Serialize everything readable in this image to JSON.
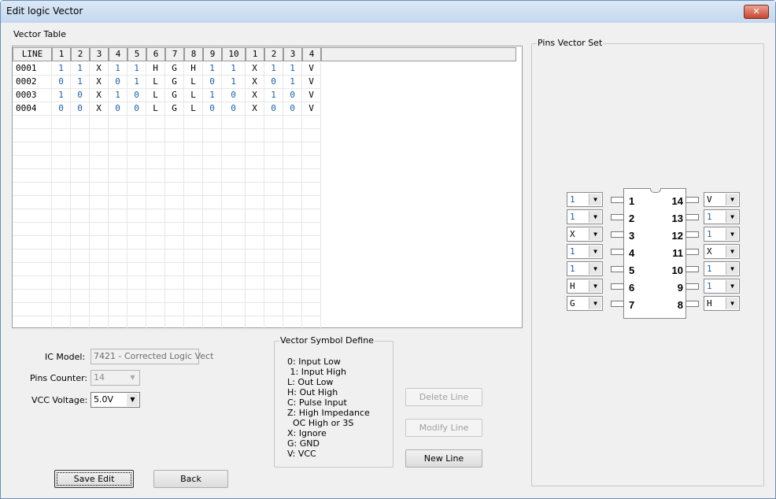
{
  "window": {
    "title": "Edit logic Vector",
    "close_icon": "close-x-icon"
  },
  "vector_table": {
    "label": "Vector Table",
    "headers": [
      "LINE",
      "1",
      "2",
      "3",
      "4",
      "5",
      "6",
      "7",
      "8",
      "9",
      "10",
      "1",
      "2",
      "3",
      "4"
    ],
    "rows": [
      [
        "0001",
        "1",
        "1",
        "X",
        "1",
        "1",
        "H",
        "G",
        "H",
        "1",
        "1",
        "X",
        "1",
        "1",
        "V"
      ],
      [
        "0002",
        "0",
        "1",
        "X",
        "0",
        "1",
        "L",
        "G",
        "L",
        "0",
        "1",
        "X",
        "0",
        "1",
        "V"
      ],
      [
        "0003",
        "1",
        "0",
        "X",
        "1",
        "0",
        "L",
        "G",
        "L",
        "1",
        "0",
        "X",
        "1",
        "0",
        "V"
      ],
      [
        "0004",
        "0",
        "0",
        "X",
        "0",
        "0",
        "L",
        "G",
        "L",
        "0",
        "0",
        "X",
        "0",
        "0",
        "V"
      ]
    ]
  },
  "form": {
    "ic_model_label": "IC Model:",
    "ic_model_value": "7421 - Corrected Logic Vect",
    "pins_counter_label": "Pins Counter:",
    "pins_counter_value": "14",
    "vcc_label": "VCC Voltage:",
    "vcc_value": "5.0V"
  },
  "symbols": {
    "title": "Vector Symbol Define",
    "items": [
      "0: Input Low",
      " 1: Input High",
      "L: Out Low",
      "H: Out High",
      "C: Pulse Input",
      "Z: High Impedance",
      "  OC High or 3S",
      "X: Ignore",
      "G: GND",
      "V: VCC"
    ]
  },
  "buttons": {
    "delete": "Delete Line",
    "modify": "Modify Line",
    "new": "New Line",
    "save": "Save Edit",
    "back": "Back"
  },
  "pins": {
    "title": "Pins Vector Set",
    "left": [
      {
        "num": "1",
        "value": "1"
      },
      {
        "num": "2",
        "value": "1"
      },
      {
        "num": "3",
        "value": "X"
      },
      {
        "num": "4",
        "value": "1"
      },
      {
        "num": "5",
        "value": "1"
      },
      {
        "num": "6",
        "value": "H"
      },
      {
        "num": "7",
        "value": "G"
      }
    ],
    "right": [
      {
        "num": "14",
        "value": "V"
      },
      {
        "num": "13",
        "value": "1"
      },
      {
        "num": "12",
        "value": "1"
      },
      {
        "num": "11",
        "value": "X"
      },
      {
        "num": "10",
        "value": "1"
      },
      {
        "num": "9",
        "value": "1"
      },
      {
        "num": "8",
        "value": "H"
      }
    ]
  },
  "colors": {
    "digit": "#1a5fb4",
    "letter": "#000000"
  }
}
